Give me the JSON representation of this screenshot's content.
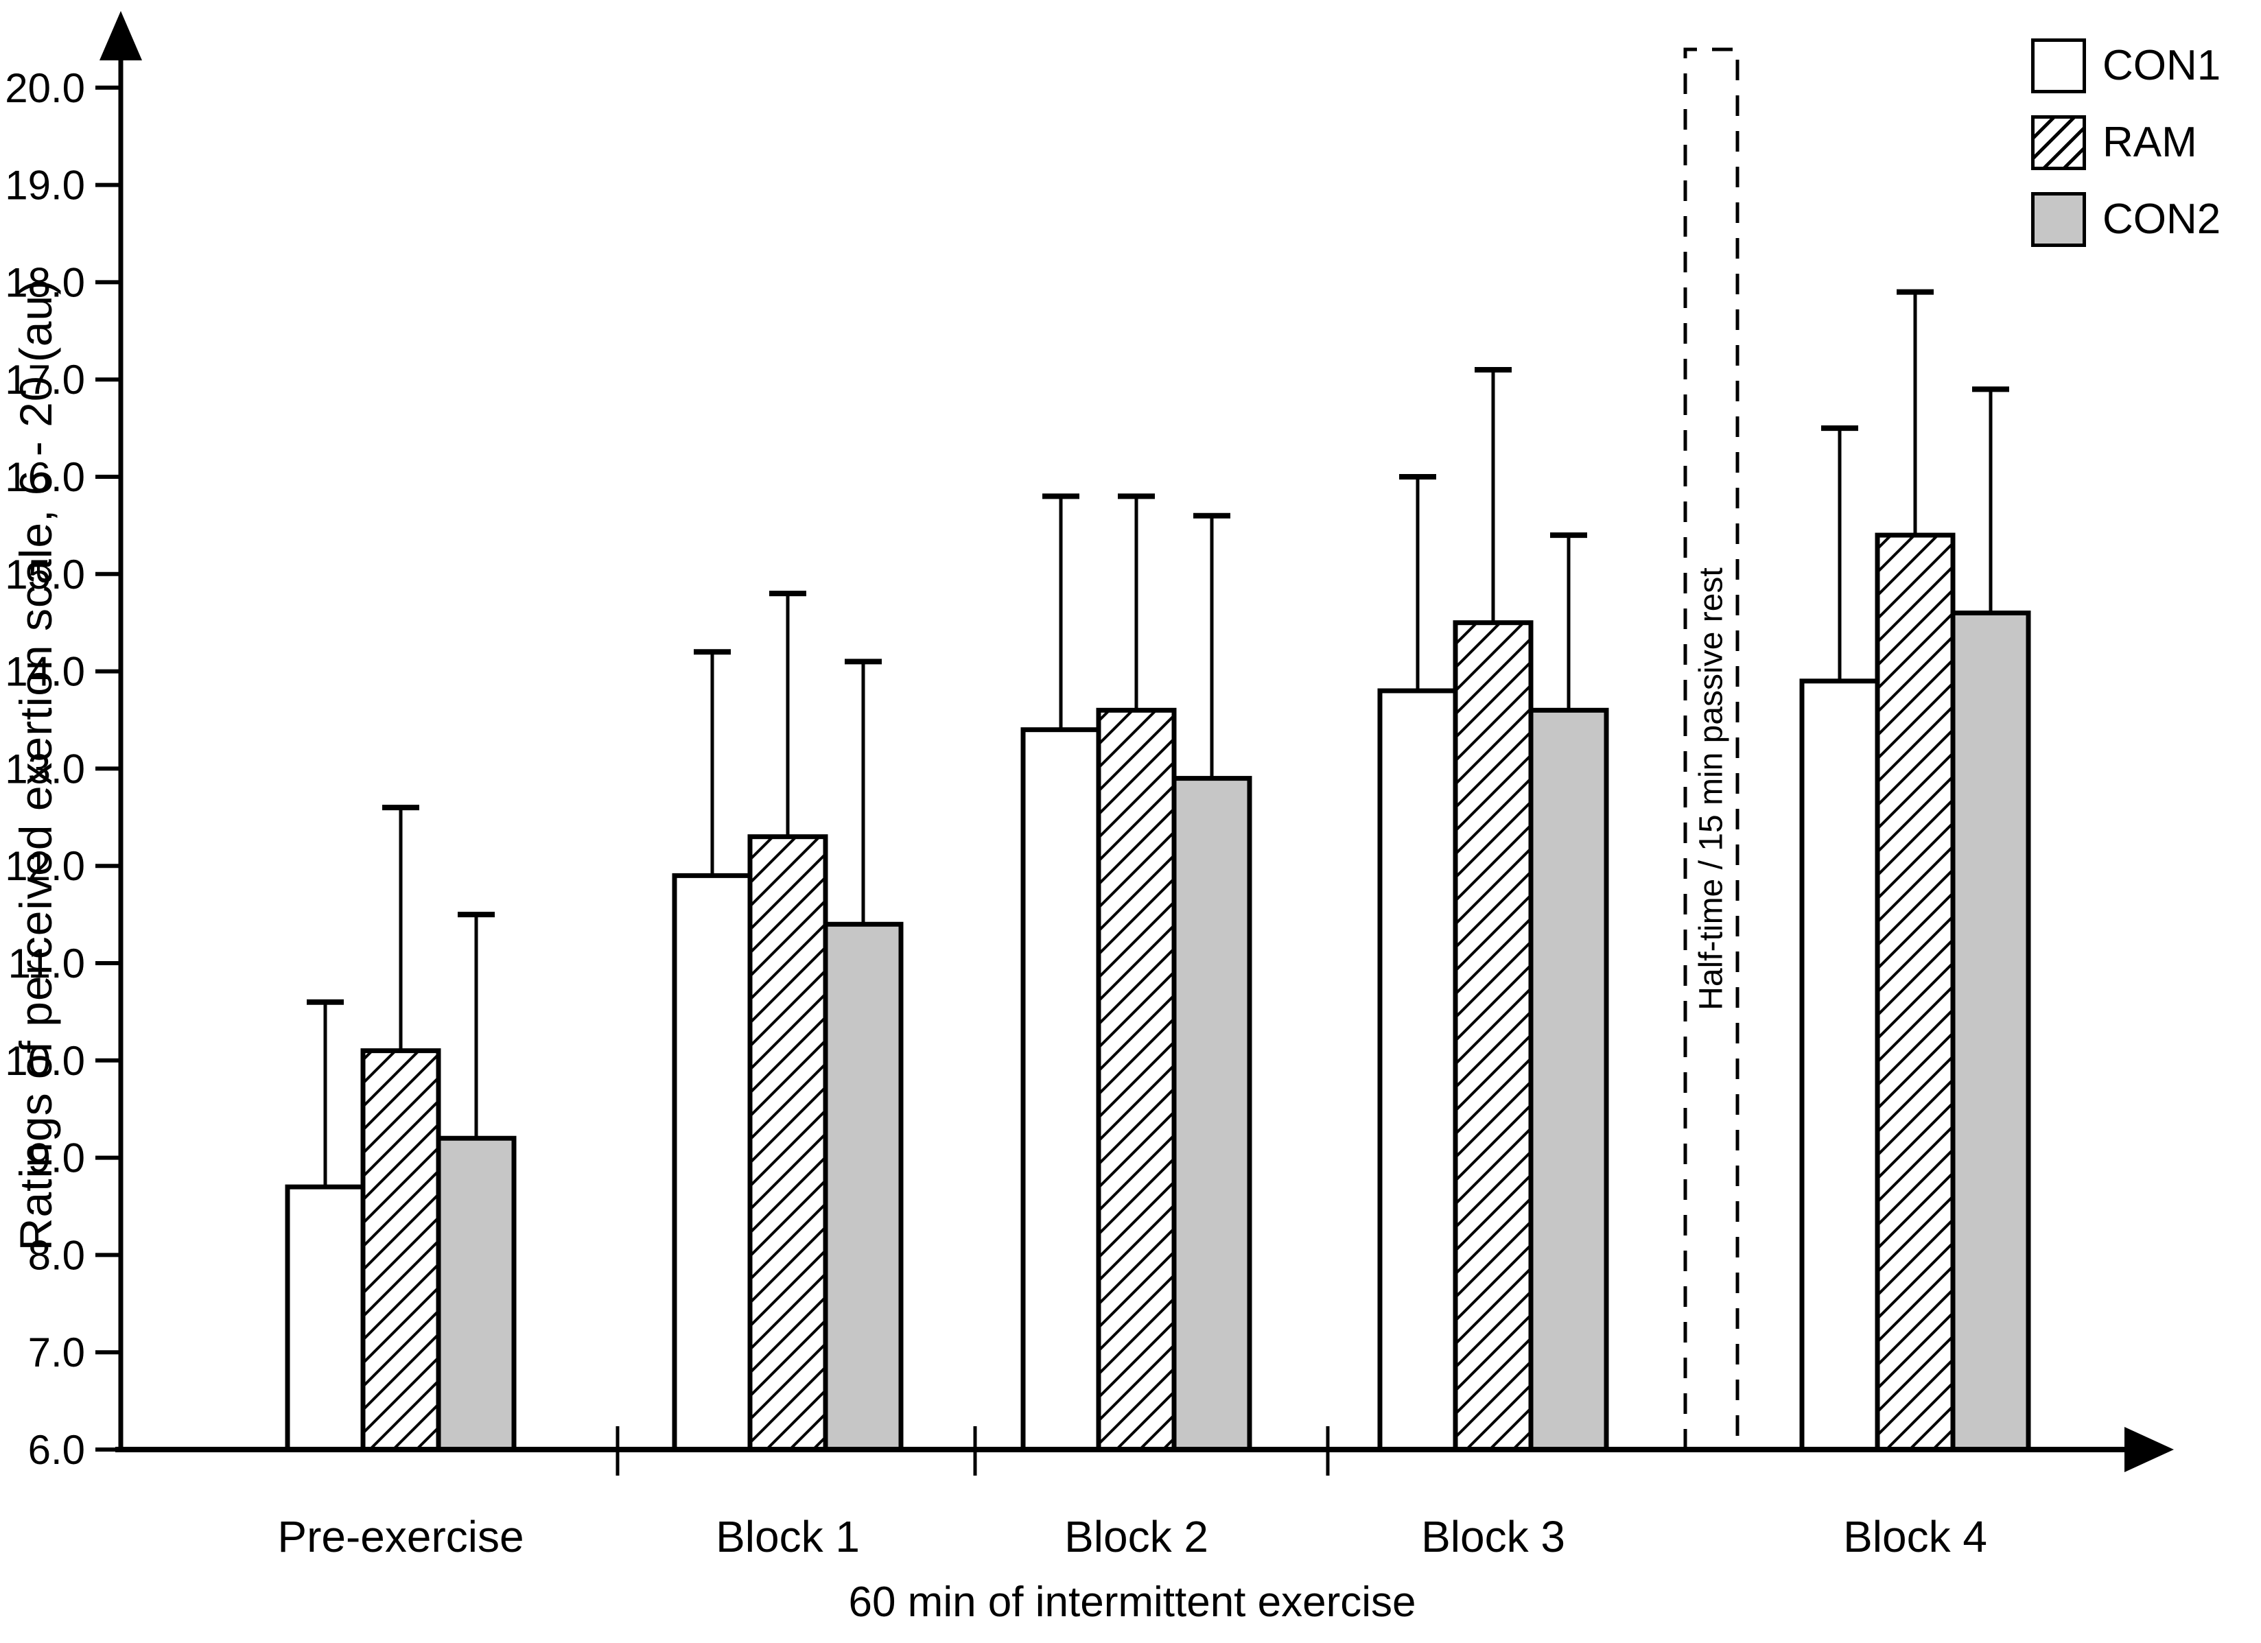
{
  "chart_data": {
    "type": "bar",
    "title": "",
    "categories": [
      "Pre-exercise",
      "Block 1",
      "Block 2",
      "Block 3",
      "Block 4"
    ],
    "series": [
      {
        "name": "CON1",
        "style": "white",
        "values": [
          8.7,
          11.9,
          13.4,
          13.8,
          13.9
        ],
        "errors_upper": [
          1.9,
          2.3,
          2.4,
          2.2,
          2.6
        ]
      },
      {
        "name": "RAM",
        "style": "hatch",
        "values": [
          10.1,
          12.3,
          13.6,
          14.5,
          15.4
        ],
        "errors_upper": [
          2.5,
          2.5,
          2.2,
          2.6,
          2.5
        ]
      },
      {
        "name": "CON2",
        "style": "gray",
        "values": [
          9.2,
          11.4,
          12.9,
          13.6,
          14.6
        ],
        "errors_upper": [
          2.3,
          2.7,
          2.7,
          1.8,
          2.3
        ]
      }
    ],
    "error_bar_tops": {
      "CON1": [
        10.6,
        14.2,
        15.8,
        16.0,
        16.5
      ],
      "RAM": [
        12.6,
        14.8,
        15.8,
        17.1,
        17.9
      ],
      "CON2": [
        11.5,
        14.1,
        15.6,
        15.4,
        16.9
      ]
    },
    "ylabel": "Ratings of perceived exertion scale, 6 - 20 (au)",
    "xlabel": "60 min of intermittent exercise",
    "ylim": [
      6.0,
      20.0
    ],
    "ytick_step": 1.0,
    "ytick_decimals": 1,
    "grid": false,
    "legend_position": "top-right",
    "annotation": {
      "label": "Half-time / 15 min passive rest",
      "between_categories": [
        "Block 3",
        "Block 4"
      ]
    },
    "colors": {
      "bar_white": "#ffffff",
      "bar_gray": "#c6c6c6",
      "ink": "#000000"
    }
  }
}
